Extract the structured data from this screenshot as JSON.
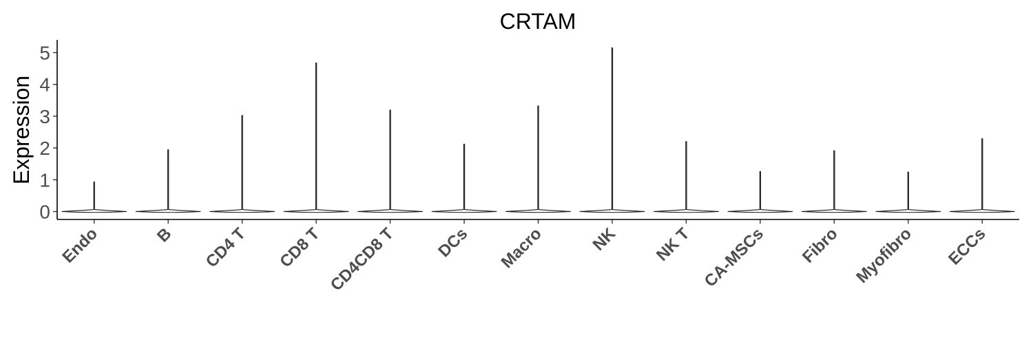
{
  "chart_data": {
    "type": "violin",
    "title": "CRTAM",
    "xlabel": "",
    "ylabel": "Expression",
    "ylim": [
      -0.25,
      5.4
    ],
    "yticks": [
      0,
      1,
      2,
      3,
      4,
      5
    ],
    "grid": false,
    "legend": "none",
    "categories": [
      "Endo",
      "B",
      "CD4 T",
      "CD8 T",
      "CD4CD8 T",
      "DCs",
      "Macro",
      "NK",
      "NK T",
      "CA-MSCs",
      "Fibro",
      "Myofibro",
      "ECCs"
    ],
    "max_values": [
      0.93,
      1.94,
      3.02,
      4.67,
      3.19,
      2.12,
      3.32,
      5.15,
      2.2,
      1.26,
      1.91,
      1.24,
      2.29
    ],
    "colors": {
      "outline": "#1a1a1a",
      "axis": "#000000",
      "tick_label": "#4d4d4d"
    }
  }
}
